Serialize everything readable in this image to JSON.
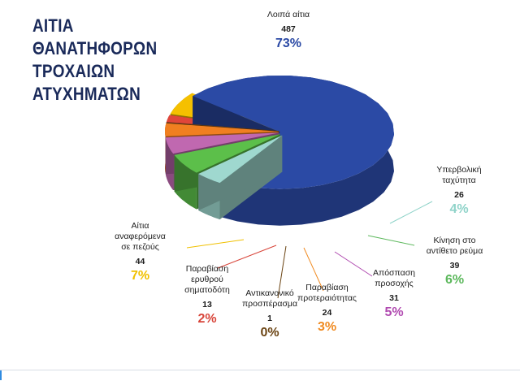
{
  "chart_data": {
    "type": "pie",
    "title": [
      "ΑΙΤΙΑ",
      "ΘΑΝΑΤΗΦΟΡΩΝ",
      "ΤΡΟΧΑΙΩΝ",
      "ΑΤΥΧΗΜΑΤΩΝ"
    ],
    "style": "3d-exploded",
    "slices": [
      {
        "label": [
          "Λοιπά αίτια"
        ],
        "value": 487,
        "percent": "73%",
        "color": "#2b4aa5",
        "percent_color": "#2b4aa5"
      },
      {
        "label": [
          "Υπερβολική",
          "ταχύτητα"
        ],
        "value": 26,
        "percent": "4%",
        "color": "#9fd8cf",
        "percent_color": "#8fd3c9"
      },
      {
        "label": [
          "Κίνηση στο",
          "αντίθετο ρεύμα"
        ],
        "value": 39,
        "percent": "6%",
        "color": "#5cbf4a",
        "percent_color": "#5cb85c"
      },
      {
        "label": [
          "Απόσπαση",
          "προσοχής"
        ],
        "value": 31,
        "percent": "5%",
        "color": "#c068b0",
        "percent_color": "#b04ab0"
      },
      {
        "label": [
          "Παραβίαση",
          "προτεραιότητας"
        ],
        "value": 24,
        "percent": "3%",
        "color": "#f07f20",
        "percent_color": "#f08a20"
      },
      {
        "label": [
          "Αντικανονικό",
          "προσπέρασμα"
        ],
        "value": 1,
        "percent": "0%",
        "color": "#7a4a1a",
        "percent_color": "#6b4413"
      },
      {
        "label": [
          "Παραβίαση",
          "ερυθρού",
          "σηματοδότη"
        ],
        "value": 13,
        "percent": "2%",
        "color": "#e0453a",
        "percent_color": "#d8453a"
      },
      {
        "label": [
          "Αίτια",
          "αναφερόμενα",
          "σε πεζούς"
        ],
        "value": 44,
        "percent": "7%",
        "color": "#f5c000",
        "percent_color": "#f0c000"
      }
    ]
  }
}
